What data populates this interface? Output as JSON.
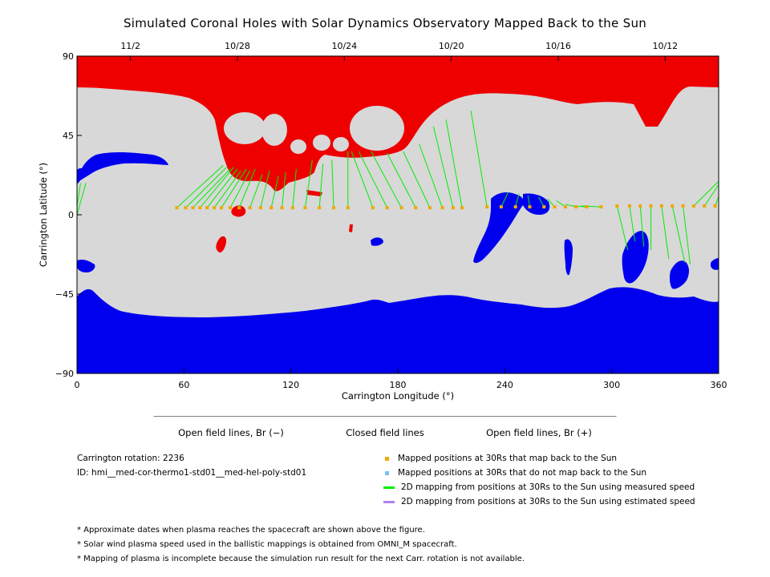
{
  "title": "Simulated Coronal Holes with Solar Dynamics Observatory Mapped Back to the Sun",
  "chart_data": {
    "type": "map",
    "xlabel": "Carrington Longitude (°)",
    "ylabel": "Carrington Latitude (°)",
    "xlim": [
      0,
      360
    ],
    "ylim": [
      -90,
      90
    ],
    "x_ticks": [
      0,
      60,
      120,
      180,
      240,
      300,
      360
    ],
    "y_ticks": [
      90,
      45,
      0,
      -45,
      -90
    ],
    "top_axis_dates": [
      {
        "label": "11/2",
        "lon": 30
      },
      {
        "label": "10/28",
        "lon": 90
      },
      {
        "label": "10/24",
        "lon": 150
      },
      {
        "label": "10/20",
        "lon": 210
      },
      {
        "label": "10/16",
        "lon": 270
      },
      {
        "label": "10/12",
        "lon": 330
      }
    ],
    "colors": {
      "open_negative": "#0000ee",
      "closed": "#d8d8d8",
      "open_positive": "#ee0000",
      "mapped_point": "#f0a800",
      "unmapped_point": "#80c0f0",
      "measured_line": "#00ee00",
      "estimated_line": "#b080f0"
    },
    "mapped_positions": [
      {
        "lon": 56,
        "lat": 4
      },
      {
        "lon": 61,
        "lat": 4
      },
      {
        "lon": 65,
        "lat": 4
      },
      {
        "lon": 69,
        "lat": 4
      },
      {
        "lon": 73,
        "lat": 4
      },
      {
        "lon": 77,
        "lat": 4
      },
      {
        "lon": 81,
        "lat": 4
      },
      {
        "lon": 86,
        "lat": 4
      },
      {
        "lon": 91,
        "lat": 4
      },
      {
        "lon": 97,
        "lat": 4
      },
      {
        "lon": 103,
        "lat": 4
      },
      {
        "lon": 109,
        "lat": 4
      },
      {
        "lon": 115,
        "lat": 4
      },
      {
        "lon": 121,
        "lat": 4
      },
      {
        "lon": 128,
        "lat": 4
      },
      {
        "lon": 136,
        "lat": 4
      },
      {
        "lon": 144,
        "lat": 4
      },
      {
        "lon": 152,
        "lat": 4
      },
      {
        "lon": 166,
        "lat": 4
      },
      {
        "lon": 174,
        "lat": 4
      },
      {
        "lon": 182,
        "lat": 4
      },
      {
        "lon": 190,
        "lat": 4
      },
      {
        "lon": 198,
        "lat": 4
      },
      {
        "lon": 205,
        "lat": 4
      },
      {
        "lon": 211,
        "lat": 4
      },
      {
        "lon": 216,
        "lat": 4
      },
      {
        "lon": 230,
        "lat": 4.5
      },
      {
        "lon": 238,
        "lat": 4.5
      },
      {
        "lon": 246,
        "lat": 4.5
      },
      {
        "lon": 254,
        "lat": 4.5
      },
      {
        "lon": 262,
        "lat": 4.5
      },
      {
        "lon": 268,
        "lat": 4.5
      },
      {
        "lon": 274,
        "lat": 4.5
      },
      {
        "lon": 280,
        "lat": 4.5
      },
      {
        "lon": 286,
        "lat": 4.5
      },
      {
        "lon": 294,
        "lat": 4.5
      },
      {
        "lon": 303,
        "lat": 5
      },
      {
        "lon": 310,
        "lat": 5
      },
      {
        "lon": 316,
        "lat": 5
      },
      {
        "lon": 322,
        "lat": 5
      },
      {
        "lon": 328,
        "lat": 5
      },
      {
        "lon": 334,
        "lat": 5
      },
      {
        "lon": 340,
        "lat": 5
      },
      {
        "lon": 346,
        "lat": 5
      },
      {
        "lon": 352,
        "lat": 5
      },
      {
        "lon": 358,
        "lat": 5
      }
    ],
    "measured_speed_lines": [
      {
        "from": [
          56,
          4
        ],
        "to": [
          82,
          28
        ]
      },
      {
        "from": [
          61,
          4
        ],
        "to": [
          84,
          27
        ]
      },
      {
        "from": [
          65,
          4
        ],
        "to": [
          86,
          26
        ]
      },
      {
        "from": [
          69,
          4
        ],
        "to": [
          88,
          27
        ]
      },
      {
        "from": [
          73,
          4
        ],
        "to": [
          90,
          26
        ]
      },
      {
        "from": [
          77,
          4
        ],
        "to": [
          92,
          25
        ]
      },
      {
        "from": [
          81,
          4
        ],
        "to": [
          95,
          26
        ]
      },
      {
        "from": [
          86,
          4
        ],
        "to": [
          97,
          25
        ]
      },
      {
        "from": [
          91,
          4
        ],
        "to": [
          100,
          26
        ]
      },
      {
        "from": [
          97,
          4
        ],
        "to": [
          104,
          23
        ]
      },
      {
        "from": [
          103,
          4
        ],
        "to": [
          108,
          25
        ]
      },
      {
        "from": [
          109,
          4
        ],
        "to": [
          113,
          22
        ]
      },
      {
        "from": [
          115,
          4
        ],
        "to": [
          117,
          24
        ]
      },
      {
        "from": [
          121,
          4
        ],
        "to": [
          123,
          26
        ]
      },
      {
        "from": [
          128,
          4
        ],
        "to": [
          132,
          31
        ]
      },
      {
        "from": [
          136,
          4
        ],
        "to": [
          138,
          29
        ]
      },
      {
        "from": [
          144,
          4
        ],
        "to": [
          143,
          31
        ]
      },
      {
        "from": [
          152,
          4
        ],
        "to": [
          152,
          36
        ]
      },
      {
        "from": [
          166,
          4
        ],
        "to": [
          154,
          36
        ]
      },
      {
        "from": [
          174,
          4
        ],
        "to": [
          158,
          36
        ]
      },
      {
        "from": [
          182,
          4
        ],
        "to": [
          165,
          36
        ]
      },
      {
        "from": [
          190,
          4
        ],
        "to": [
          174,
          35
        ]
      },
      {
        "from": [
          198,
          4
        ],
        "to": [
          183,
          36
        ]
      },
      {
        "from": [
          205,
          4
        ],
        "to": [
          192,
          40
        ]
      },
      {
        "from": [
          211,
          4
        ],
        "to": [
          200,
          50
        ]
      },
      {
        "from": [
          216,
          4
        ],
        "to": [
          207,
          54
        ]
      },
      {
        "from": [
          230,
          4.5
        ],
        "to": [
          221,
          59
        ]
      },
      {
        "from": [
          238,
          4.5
        ],
        "to": [
          242,
          13
        ]
      },
      {
        "from": [
          246,
          4.5
        ],
        "to": [
          248,
          12
        ]
      },
      {
        "from": [
          254,
          4.5
        ],
        "to": [
          253,
          11
        ]
      },
      {
        "from": [
          262,
          4.5
        ],
        "to": [
          259,
          10
        ]
      },
      {
        "from": [
          268,
          4.5
        ],
        "to": [
          264,
          9
        ]
      },
      {
        "from": [
          274,
          4.5
        ],
        "to": [
          269,
          8
        ]
      },
      {
        "from": [
          280,
          4.5
        ],
        "to": [
          274,
          6
        ]
      },
      {
        "from": [
          286,
          4.5
        ],
        "to": [
          278,
          5
        ]
      },
      {
        "from": [
          294,
          4.5
        ],
        "to": [
          283,
          5
        ]
      },
      {
        "from": [
          303,
          5
        ],
        "to": [
          309,
          -20
        ]
      },
      {
        "from": [
          310,
          5
        ],
        "to": [
          313,
          -15
        ]
      },
      {
        "from": [
          316,
          5
        ],
        "to": [
          318,
          -18
        ]
      },
      {
        "from": [
          322,
          5
        ],
        "to": [
          322,
          -20
        ]
      },
      {
        "from": [
          328,
          5
        ],
        "to": [
          332,
          -25
        ]
      },
      {
        "from": [
          334,
          5
        ],
        "to": [
          341,
          -27
        ]
      },
      {
        "from": [
          340,
          5
        ],
        "to": [
          344,
          -28
        ]
      },
      {
        "from": [
          346,
          5
        ],
        "to": [
          361,
          20
        ]
      },
      {
        "from": [
          352,
          5
        ],
        "to": [
          362,
          20
        ]
      },
      {
        "from": [
          358,
          5
        ],
        "to": [
          364,
          21
        ]
      },
      {
        "from": [
          0,
          5
        ],
        "to": [
          2,
          18
        ]
      },
      {
        "from": [
          0,
          0
        ],
        "to": [
          5,
          18
        ]
      }
    ],
    "colorbar": {
      "segments": [
        "open_negative",
        "closed",
        "open_positive"
      ],
      "labels": [
        "Open field lines, Br (−)",
        "Closed field lines",
        "Open field lines, Br (+)"
      ]
    }
  },
  "info": {
    "rotation": "Carrington rotation: 2236",
    "id": "ID: hmi__med-cor-thermo1-std01__med-hel-poly-std01"
  },
  "legend": [
    {
      "label": "Mapped positions at 30Rs that map back to the Sun",
      "kind": "square",
      "color": "#f0a800"
    },
    {
      "label": "Mapped positions at 30Rs that do not map back to the Sun",
      "kind": "square",
      "color": "#80c0f0"
    },
    {
      "label": "2D mapping from positions at 30Rs to the Sun using measured speed",
      "kind": "line",
      "color": "#00ee00"
    },
    {
      "label": "2D mapping from positions at 30Rs to the Sun using estimated speed",
      "kind": "line",
      "color": "#b080f0"
    }
  ],
  "notes": [
    "* Approximate dates when plasma reaches the spacecraft are shown above the figure.",
    "* Solar wind plasma speed used in the ballistic mappings is obtained from OMNI_M spacecraft.",
    "* Mapping of plasma is incomplete because the simulation run result for the next Carr. rotation is not available."
  ]
}
